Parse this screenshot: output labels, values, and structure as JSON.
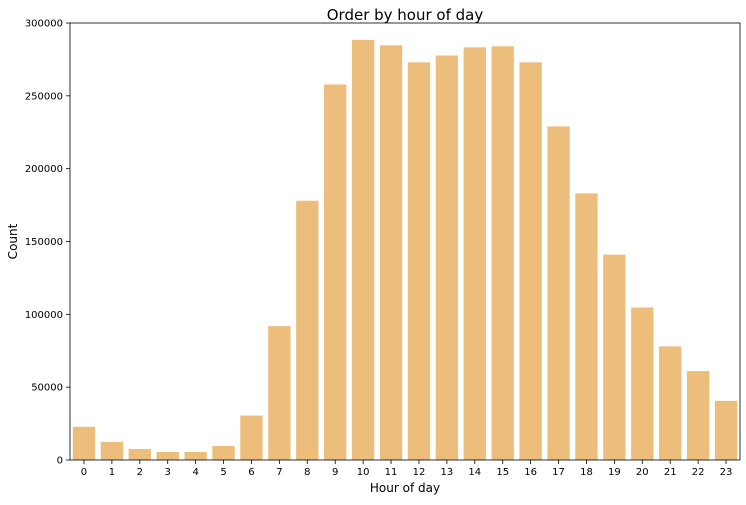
{
  "chart_data": {
    "type": "bar",
    "title": "Order by hour of day",
    "xlabel": "Hour of day",
    "ylabel": "Count",
    "categories": [
      "0",
      "1",
      "2",
      "3",
      "4",
      "5",
      "6",
      "7",
      "8",
      "9",
      "10",
      "11",
      "12",
      "13",
      "14",
      "15",
      "16",
      "17",
      "18",
      "19",
      "20",
      "21",
      "22",
      "23"
    ],
    "values": [
      22800,
      12400,
      7500,
      5500,
      5500,
      9600,
      30500,
      91900,
      178000,
      257800,
      288400,
      284700,
      273000,
      277700,
      283300,
      284000,
      273000,
      229000,
      183000,
      141000,
      104700,
      78000,
      61000,
      40600
    ],
    "ylim": [
      0,
      300000
    ],
    "yticks": [
      0,
      50000,
      100000,
      150000,
      200000,
      250000,
      300000
    ],
    "ytick_labels": [
      "0",
      "50000",
      "100000",
      "150000",
      "200000",
      "250000",
      "300000"
    ],
    "grid": false,
    "legend": "none",
    "bar_color": "#EDBD7C"
  }
}
